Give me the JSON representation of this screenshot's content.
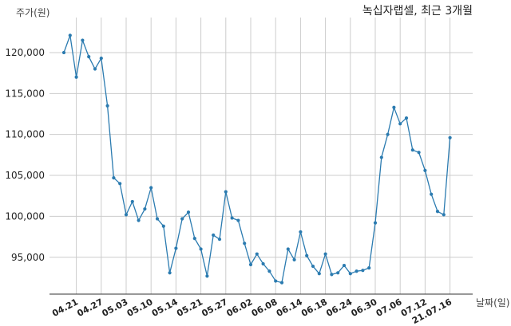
{
  "chart_data": {
    "type": "line",
    "title": "녹십자랩셀, 최근 3개월",
    "ylabel": "주가(원)",
    "xlabel": "날짜(일)",
    "ylim": [
      90500,
      123500
    ],
    "yticks": [
      95000,
      100000,
      105000,
      110000,
      115000,
      120000
    ],
    "ytick_labels": [
      "95,000",
      "100,000",
      "105,000",
      "110,000",
      "115,000",
      "120,000"
    ],
    "xticks": [
      {
        "date": "04.21",
        "index": 2
      },
      {
        "date": "04.27",
        "index": 6
      },
      {
        "date": "05.03",
        "index": 10
      },
      {
        "date": "05.10",
        "index": 14
      },
      {
        "date": "05.14",
        "index": 18
      },
      {
        "date": "05.21",
        "index": 22
      },
      {
        "date": "05.27",
        "index": 26
      },
      {
        "date": "06.02",
        "index": 30
      },
      {
        "date": "06.08",
        "index": 34
      },
      {
        "date": "06.14",
        "index": 38
      },
      {
        "date": "06.18",
        "index": 42
      },
      {
        "date": "06.24",
        "index": 46
      },
      {
        "date": "06.30",
        "index": 50
      },
      {
        "date": "07.06",
        "index": 54
      },
      {
        "date": "07.12",
        "index": 58
      },
      {
        "date": "21.07.16",
        "index": 62
      }
    ],
    "grid": true,
    "color": "#2b7bb0",
    "series": [
      {
        "values": [
          120000,
          122100,
          117000,
          121500,
          119500,
          118000,
          119300,
          113500,
          104700,
          104000,
          100200,
          101800,
          99500,
          100900,
          103500,
          99700,
          98800,
          93100,
          96100,
          99700,
          100500,
          97300,
          96000,
          92700,
          97700,
          97200,
          103000,
          99800,
          99500,
          96700,
          94100,
          95400,
          94200,
          93300,
          92100,
          91900,
          96000,
          94700,
          98100,
          95200,
          93900,
          93000,
          95400,
          92900,
          93100,
          94000,
          93000,
          93300,
          93400,
          93700,
          99200,
          107200,
          110000,
          113300,
          111300,
          112000,
          108100,
          107800,
          105600,
          102700,
          100600,
          100200,
          109600
        ]
      }
    ]
  }
}
